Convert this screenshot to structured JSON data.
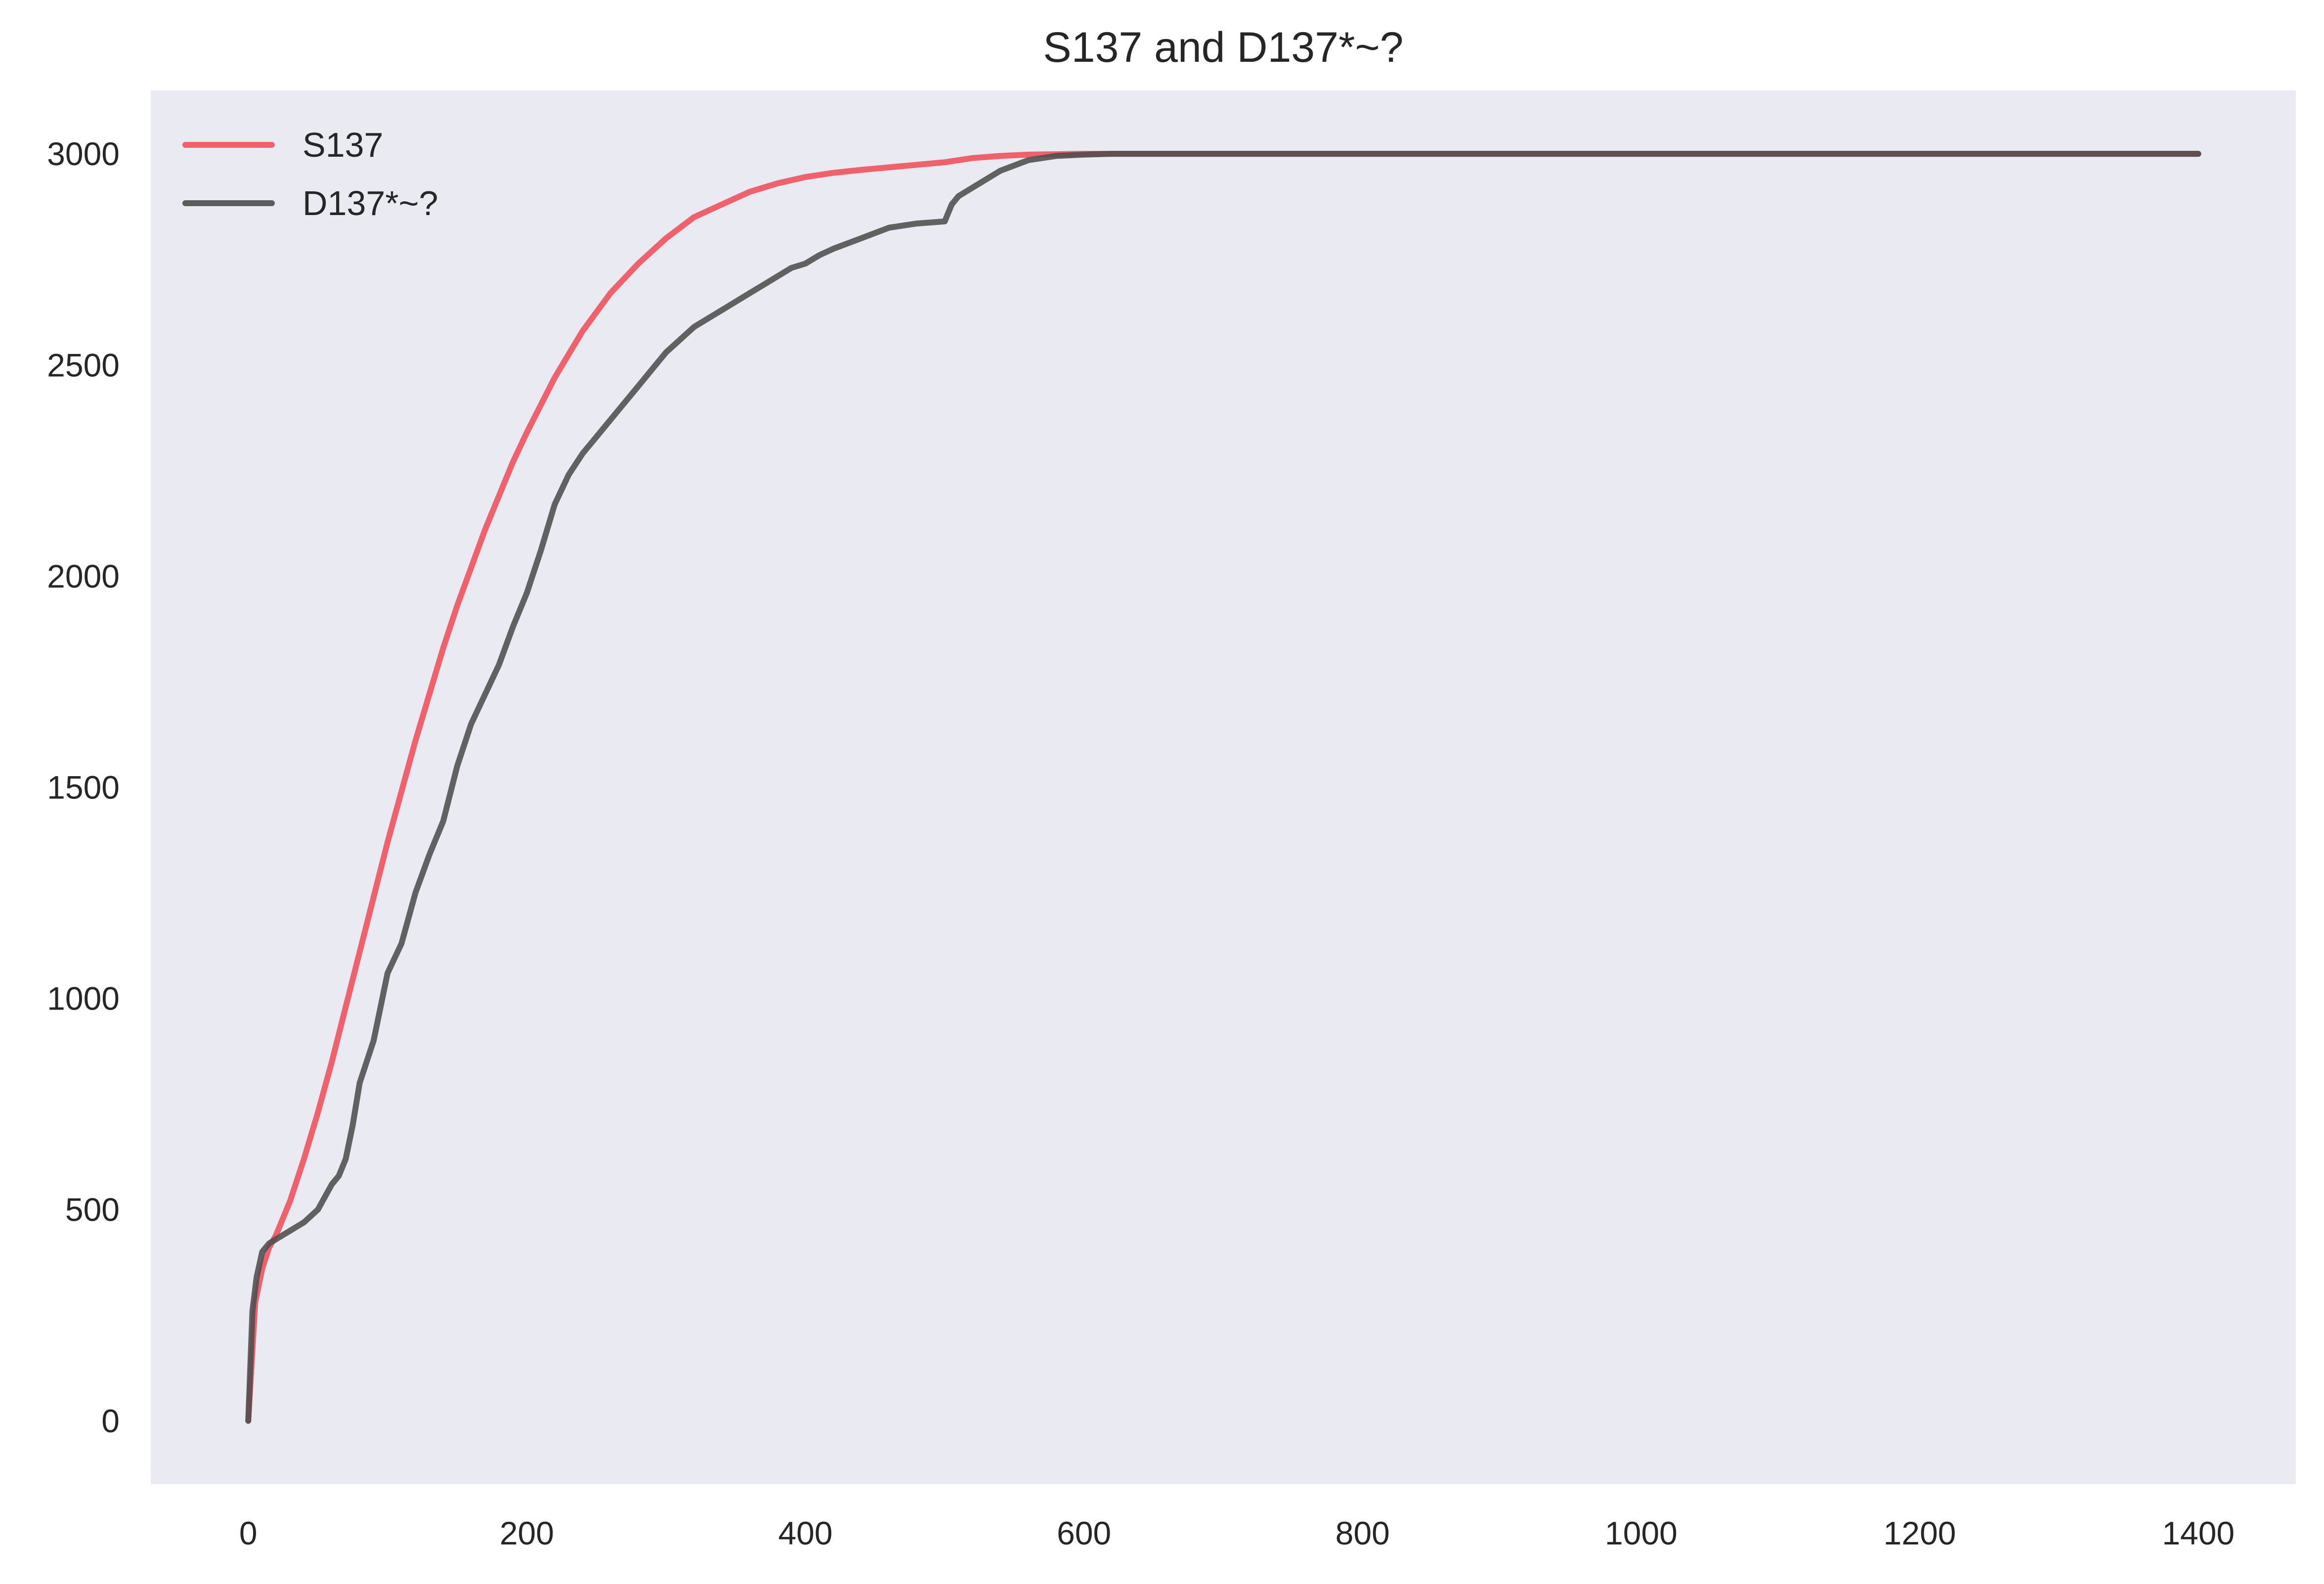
{
  "chart_data": {
    "type": "line",
    "title": "S137 and D137*~?",
    "xlabel": "",
    "ylabel": "",
    "xlim": [
      -70,
      1470
    ],
    "ylim": [
      -150,
      3150
    ],
    "xticks": [
      0,
      200,
      400,
      600,
      800,
      1000,
      1200,
      1400
    ],
    "yticks": [
      0,
      500,
      1000,
      1500,
      2000,
      2500,
      3000
    ],
    "grid": false,
    "legend": "top-left",
    "background": "#eaeaf2",
    "series": [
      {
        "name": "S137",
        "color": "#f0525c",
        "x": [
          0,
          5,
          10,
          15,
          20,
          30,
          40,
          50,
          60,
          70,
          80,
          90,
          100,
          110,
          120,
          130,
          140,
          150,
          160,
          170,
          180,
          190,
          200,
          220,
          240,
          260,
          280,
          300,
          320,
          340,
          360,
          380,
          400,
          420,
          440,
          460,
          480,
          500,
          520,
          540,
          560,
          580,
          600,
          650,
          700,
          750,
          800,
          1000,
          1200,
          1400
        ],
        "y": [
          0,
          280,
          360,
          410,
          440,
          520,
          620,
          730,
          850,
          980,
          1110,
          1240,
          1370,
          1490,
          1610,
          1720,
          1830,
          1930,
          2020,
          2110,
          2190,
          2270,
          2340,
          2470,
          2580,
          2670,
          2740,
          2800,
          2850,
          2880,
          2910,
          2930,
          2945,
          2955,
          2962,
          2968,
          2974,
          2980,
          2990,
          2995,
          2998,
          2999,
          3000,
          3000,
          3000,
          3000,
          3000,
          3000,
          3000,
          3000
        ]
      },
      {
        "name": "D137*~?",
        "color": "#4d4d4d",
        "x": [
          0,
          3,
          6,
          10,
          15,
          20,
          30,
          40,
          50,
          60,
          65,
          70,
          75,
          80,
          90,
          100,
          110,
          120,
          130,
          140,
          150,
          160,
          170,
          180,
          190,
          200,
          210,
          220,
          230,
          240,
          250,
          260,
          270,
          280,
          290,
          300,
          310,
          320,
          330,
          340,
          350,
          360,
          370,
          380,
          390,
          400,
          410,
          420,
          440,
          460,
          480,
          500,
          505,
          510,
          520,
          540,
          560,
          580,
          600,
          620,
          650,
          700,
          750,
          800,
          1000,
          1200,
          1400
        ],
        "y": [
          0,
          260,
          340,
          400,
          420,
          430,
          450,
          470,
          500,
          560,
          580,
          620,
          700,
          800,
          900,
          1060,
          1130,
          1250,
          1340,
          1420,
          1550,
          1650,
          1720,
          1790,
          1880,
          1960,
          2060,
          2170,
          2240,
          2290,
          2330,
          2370,
          2410,
          2450,
          2490,
          2530,
          2560,
          2590,
          2610,
          2630,
          2650,
          2670,
          2690,
          2710,
          2730,
          2740,
          2760,
          2775,
          2800,
          2825,
          2835,
          2840,
          2880,
          2900,
          2920,
          2960,
          2985,
          2995,
          2998,
          3000,
          3000,
          3000,
          3000,
          3000,
          3000,
          3000,
          3000
        ]
      }
    ]
  }
}
